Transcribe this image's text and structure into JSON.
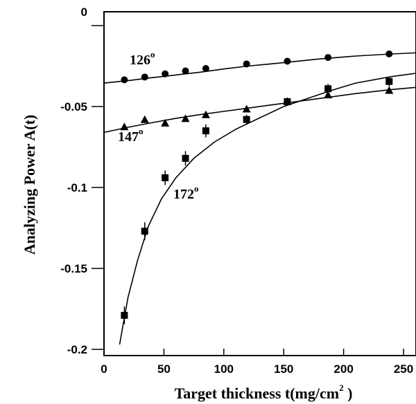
{
  "chart_data": {
    "type": "scatter",
    "title": "",
    "xlabel": "Target thickness  t(mg/cm",
    "xlabel_sup": "2",
    "xlabel_tail": " )",
    "ylabel": "Analyzing Power A(t)",
    "xlim": [
      0,
      270
    ],
    "ylim": [
      -0.205,
      0
    ],
    "xticks": [
      0,
      50,
      100,
      150,
      200,
      250
    ],
    "xtick_labels": [
      "0",
      "50",
      "100",
      "150",
      "200",
      "250"
    ],
    "yticks": [
      0,
      -0.05,
      -0.1,
      -0.15,
      -0.2
    ],
    "ytick_labels": [
      "0",
      "-0.05",
      "-0.1",
      "-0.15",
      "-0.2"
    ],
    "grid": false,
    "series": [
      {
        "label_text": "126",
        "label_sup": "o",
        "marker": "circle",
        "x": [
          17,
          34,
          51,
          68,
          85,
          119,
          153,
          187,
          238
        ],
        "y": [
          -0.0335,
          -0.0318,
          -0.0298,
          -0.028,
          -0.0265,
          -0.0237,
          -0.022,
          -0.0197,
          -0.0175
        ],
        "yerr": [
          0,
          0,
          0,
          0,
          0,
          0,
          0,
          0,
          0
        ],
        "fit": [
          [
            0,
            -0.0355
          ],
          [
            20,
            -0.034
          ],
          [
            40,
            -0.0322
          ],
          [
            60,
            -0.0305
          ],
          [
            80,
            -0.0288
          ],
          [
            100,
            -0.0268
          ],
          [
            120,
            -0.025
          ],
          [
            150,
            -0.0229
          ],
          [
            180,
            -0.0206
          ],
          [
            210,
            -0.0188
          ],
          [
            240,
            -0.0175
          ],
          [
            270,
            -0.0165
          ]
        ]
      },
      {
        "label_text": "147",
        "label_sup": "o",
        "marker": "triangle",
        "x": [
          17,
          34,
          51,
          68,
          85,
          119,
          153,
          187,
          238
        ],
        "y": [
          -0.0625,
          -0.058,
          -0.0602,
          -0.0574,
          -0.055,
          -0.0515,
          -0.0468,
          -0.0428,
          -0.04
        ],
        "yerr": [
          0,
          0,
          0,
          0,
          0,
          0,
          0,
          0,
          0
        ],
        "fit": [
          [
            0,
            -0.066
          ],
          [
            20,
            -0.0628
          ],
          [
            40,
            -0.06
          ],
          [
            60,
            -0.0573
          ],
          [
            80,
            -0.055
          ],
          [
            100,
            -0.053
          ],
          [
            120,
            -0.051
          ],
          [
            150,
            -0.048
          ],
          [
            180,
            -0.045
          ],
          [
            210,
            -0.042
          ],
          [
            240,
            -0.0395
          ],
          [
            270,
            -0.0375
          ]
        ]
      },
      {
        "label_text": "172",
        "label_sup": "o",
        "marker": "square",
        "x": [
          17,
          34,
          51,
          68,
          85,
          119,
          153,
          187,
          238
        ],
        "y": [
          -0.179,
          -0.127,
          -0.094,
          -0.082,
          -0.065,
          -0.058,
          -0.047,
          -0.039,
          -0.0345
        ],
        "yerr": [
          0.0055,
          0.0055,
          0.0045,
          0.0045,
          0.004,
          0.003,
          0.0025,
          0.003,
          0.003
        ],
        "fit": [
          [
            13,
            -0.197
          ],
          [
            20,
            -0.168
          ],
          [
            28,
            -0.145
          ],
          [
            37,
            -0.124
          ],
          [
            48,
            -0.107
          ],
          [
            60,
            -0.094
          ],
          [
            75,
            -0.082
          ],
          [
            92,
            -0.072
          ],
          [
            110,
            -0.064
          ],
          [
            130,
            -0.057
          ],
          [
            150,
            -0.05
          ],
          [
            170,
            -0.045
          ],
          [
            190,
            -0.04
          ],
          [
            210,
            -0.0355
          ],
          [
            240,
            -0.0315
          ],
          [
            270,
            -0.0285
          ]
        ]
      }
    ]
  }
}
